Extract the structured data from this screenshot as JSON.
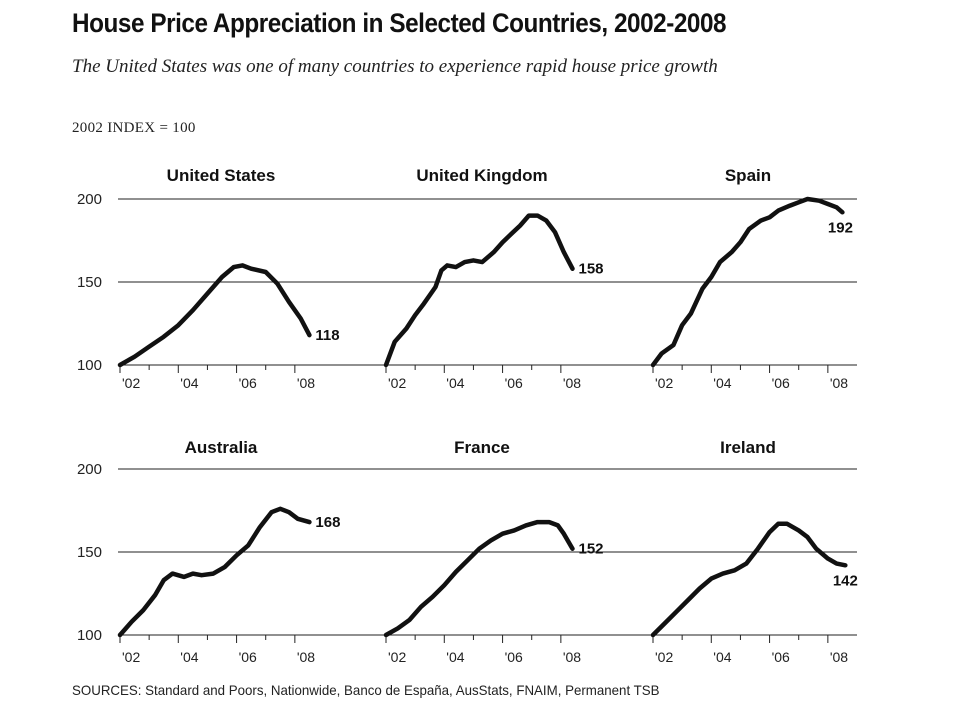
{
  "title": "House Price Appreciation in Selected Countries, 2002-2008",
  "subtitle": "The United States was one of many countries to experience rapid house price growth",
  "index_label": "2002 INDEX = 100",
  "sources": "SOURCES: Standard and Poors, Nationwide, Banco de España, AusStats, FNAIM, Permanent TSB",
  "colors": {
    "line": "#111111",
    "grid": "#222222"
  },
  "chart_data": [
    {
      "type": "line",
      "title": "United States",
      "ylim": [
        100,
        200
      ],
      "yticks": [
        100,
        150,
        200
      ],
      "xlim": [
        2002,
        2009
      ],
      "xticks": [
        2002,
        2004,
        2006,
        2008
      ],
      "xtick_labels": [
        "'02",
        "'04",
        "'06",
        "'08"
      ],
      "end_label": "118",
      "x": [
        2002.0,
        2002.5,
        2003.0,
        2003.5,
        2004.0,
        2004.5,
        2005.0,
        2005.5,
        2005.9,
        2006.2,
        2006.5,
        2007.0,
        2007.4,
        2007.8,
        2008.2,
        2008.5
      ],
      "y": [
        100,
        105,
        111,
        117,
        124,
        133,
        143,
        153,
        159,
        160,
        158,
        156,
        149,
        138,
        128,
        118
      ]
    },
    {
      "type": "line",
      "title": "United Kingdom",
      "ylim": [
        100,
        200
      ],
      "yticks": [
        100,
        150,
        200
      ],
      "xlim": [
        2002,
        2009
      ],
      "xticks": [
        2002,
        2004,
        2006,
        2008
      ],
      "xtick_labels": [
        "'02",
        "'04",
        "'06",
        "'08"
      ],
      "end_label": "158",
      "x": [
        2002.0,
        2002.3,
        2002.7,
        2003.0,
        2003.3,
        2003.7,
        2003.9,
        2004.1,
        2004.4,
        2004.7,
        2005.0,
        2005.3,
        2005.7,
        2006.0,
        2006.3,
        2006.6,
        2006.9,
        2007.2,
        2007.5,
        2007.8,
        2008.1,
        2008.4
      ],
      "y": [
        100,
        114,
        122,
        130,
        137,
        147,
        157,
        160,
        159,
        162,
        163,
        162,
        168,
        174,
        179,
        184,
        190,
        190,
        187,
        180,
        168,
        158
      ]
    },
    {
      "type": "line",
      "title": "Spain",
      "ylim": [
        100,
        200
      ],
      "yticks": [
        100,
        150,
        200
      ],
      "xlim": [
        2002,
        2009
      ],
      "xticks": [
        2002,
        2004,
        2006,
        2008
      ],
      "xtick_labels": [
        "'02",
        "'04",
        "'06",
        "'08"
      ],
      "end_label": "192",
      "x": [
        2002.0,
        2002.3,
        2002.7,
        2003.0,
        2003.3,
        2003.7,
        2004.0,
        2004.3,
        2004.7,
        2005.0,
        2005.3,
        2005.7,
        2006.0,
        2006.3,
        2006.7,
        2007.0,
        2007.3,
        2007.7,
        2008.0,
        2008.3,
        2008.5
      ],
      "y": [
        100,
        107,
        112,
        124,
        131,
        146,
        153,
        162,
        168,
        174,
        182,
        187,
        189,
        193,
        196,
        198,
        200,
        199,
        197,
        195,
        192
      ]
    },
    {
      "type": "line",
      "title": "Australia",
      "ylim": [
        100,
        200
      ],
      "yticks": [
        100,
        150,
        200
      ],
      "xlim": [
        2002,
        2009
      ],
      "xticks": [
        2002,
        2004,
        2006,
        2008
      ],
      "xtick_labels": [
        "'02",
        "'04",
        "'06",
        "'08"
      ],
      "end_label": "168",
      "x": [
        2002.0,
        2002.4,
        2002.8,
        2003.2,
        2003.5,
        2003.8,
        2004.2,
        2004.5,
        2004.8,
        2005.2,
        2005.6,
        2006.0,
        2006.4,
        2006.8,
        2007.2,
        2007.5,
        2007.8,
        2008.1,
        2008.5
      ],
      "y": [
        100,
        108,
        115,
        124,
        133,
        137,
        135,
        137,
        136,
        137,
        141,
        148,
        154,
        165,
        174,
        176,
        174,
        170,
        168
      ]
    },
    {
      "type": "line",
      "title": "France",
      "ylim": [
        100,
        200
      ],
      "yticks": [
        100,
        150,
        200
      ],
      "xlim": [
        2002,
        2009
      ],
      "xticks": [
        2002,
        2004,
        2006,
        2008
      ],
      "xtick_labels": [
        "'02",
        "'04",
        "'06",
        "'08"
      ],
      "end_label": "152",
      "x": [
        2002.0,
        2002.4,
        2002.8,
        2003.2,
        2003.6,
        2004.0,
        2004.4,
        2004.8,
        2005.2,
        2005.6,
        2006.0,
        2006.4,
        2006.8,
        2007.2,
        2007.6,
        2007.9,
        2008.1,
        2008.4
      ],
      "y": [
        100,
        104,
        109,
        117,
        123,
        130,
        138,
        145,
        152,
        157,
        161,
        163,
        166,
        168,
        168,
        166,
        161,
        152
      ]
    },
    {
      "type": "line",
      "title": "Ireland",
      "ylim": [
        100,
        200
      ],
      "yticks": [
        100,
        150,
        200
      ],
      "xlim": [
        2002,
        2009
      ],
      "xticks": [
        2002,
        2004,
        2006,
        2008
      ],
      "xtick_labels": [
        "'02",
        "'04",
        "'06",
        "'08"
      ],
      "end_label": "142",
      "x": [
        2002.0,
        2002.4,
        2002.8,
        2003.2,
        2003.6,
        2004.0,
        2004.4,
        2004.8,
        2005.2,
        2005.6,
        2006.0,
        2006.3,
        2006.6,
        2007.0,
        2007.3,
        2007.6,
        2008.0,
        2008.3,
        2008.6
      ],
      "y": [
        100,
        107,
        114,
        121,
        128,
        134,
        137,
        139,
        143,
        152,
        162,
        167,
        167,
        163,
        159,
        152,
        146,
        143,
        142
      ]
    }
  ]
}
